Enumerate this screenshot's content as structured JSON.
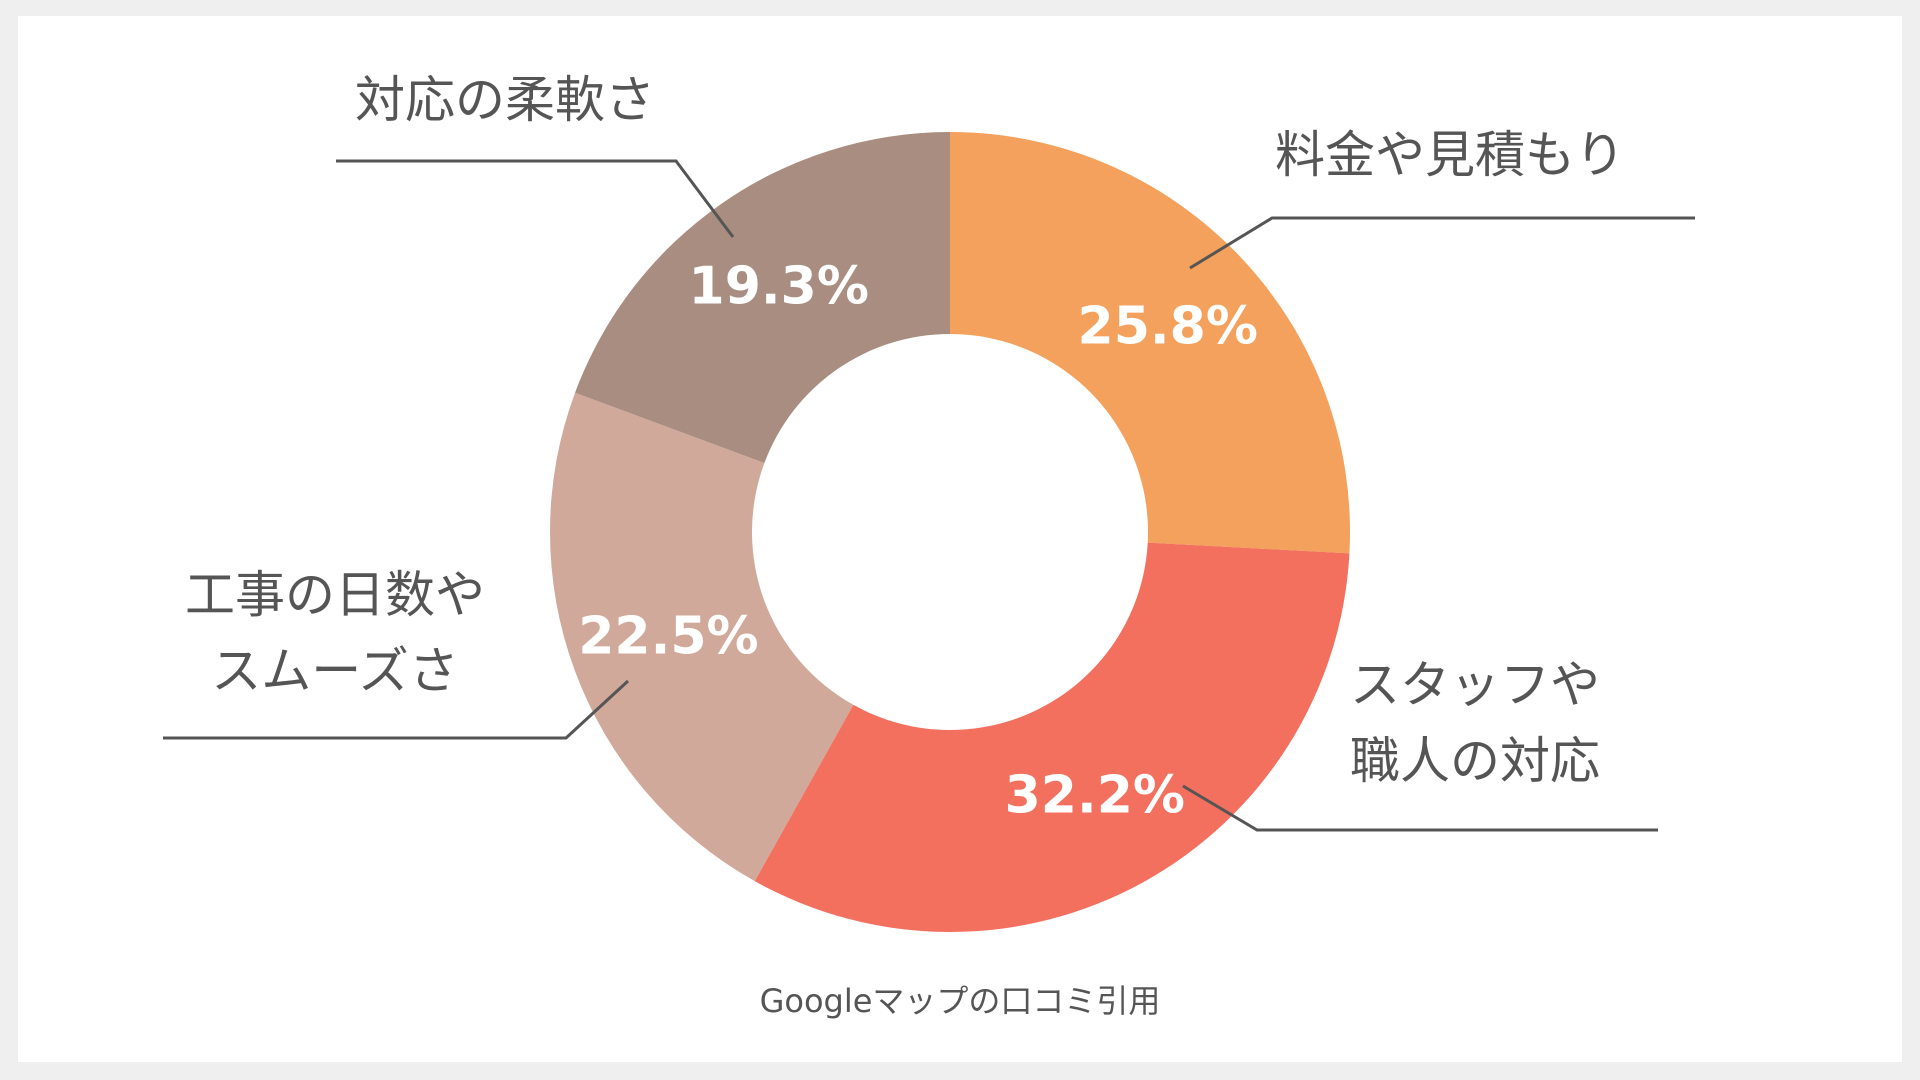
{
  "chart_data": {
    "type": "pie",
    "donut": true,
    "categories": [
      "料金や見積もり",
      "スタッフや\n職人の対応",
      "工事の日数や\nスムーズさ",
      "対応の柔軟さ"
    ],
    "values": [
      25.8,
      32.2,
      22.5,
      19.3
    ],
    "value_labels": [
      "25.8%",
      "32.2%",
      "22.5%",
      "19.3%"
    ],
    "colors": [
      "#f3a15c",
      "#f36f5e",
      "#d1a99a",
      "#a88d80"
    ],
    "legend": "callout labels"
  },
  "source_note": "Googleマップの口コミ引用"
}
